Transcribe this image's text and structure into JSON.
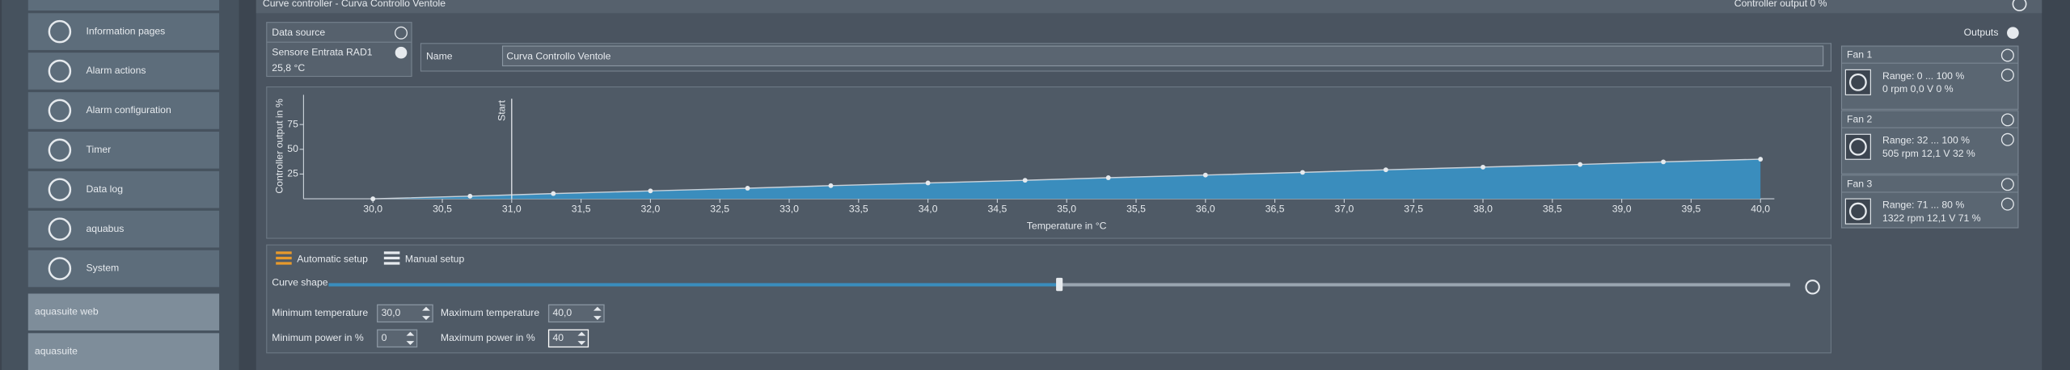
{
  "sidebar": {
    "items": [
      "Information pages",
      "Alarm actions",
      "Alarm configuration",
      "Timer",
      "Data log",
      "aquabus",
      "System"
    ],
    "buttons": [
      "aquasuite web",
      "aquasuite"
    ]
  },
  "header": {
    "title": "Curve controller  -  Curva Controllo Ventole",
    "output": "Controller output   0 %"
  },
  "data_source": {
    "title": "Data source",
    "sensor": "Sensore Entrata RAD1",
    "value": "25,8 °C"
  },
  "name": {
    "label": "Name",
    "value": "Curva Controllo Ventole"
  },
  "chart_data": {
    "type": "area",
    "xlabel": "Temperature in °C",
    "ylabel": "Controller output in %",
    "x": [
      30.0,
      30.7,
      31.3,
      32.0,
      32.7,
      33.3,
      34.0,
      34.7,
      35.3,
      36.0,
      36.7,
      37.3,
      38.0,
      38.7,
      39.3,
      40.0
    ],
    "values": [
      0,
      2.7,
      5.3,
      8,
      10.7,
      13.3,
      16,
      18.7,
      21.3,
      24,
      26.7,
      29.3,
      32,
      34.7,
      37.3,
      40
    ],
    "color": "#c9d1d9",
    "fill": "#3a8dbd",
    "xlim": [
      29.5,
      40.1
    ],
    "ylim": [
      0,
      105
    ],
    "xticks": [
      {
        "value": 30.0,
        "label": "30,0"
      },
      {
        "value": 30.5,
        "label": "30,5"
      },
      {
        "value": 31.0,
        "label": "31,0"
      },
      {
        "value": 31.5,
        "label": "31,5"
      },
      {
        "value": 32.0,
        "label": "32,0"
      },
      {
        "value": 32.5,
        "label": "32,5"
      },
      {
        "value": 33.0,
        "label": "33,0"
      },
      {
        "value": 33.5,
        "label": "33,5"
      },
      {
        "value": 34.0,
        "label": "34,0"
      },
      {
        "value": 34.5,
        "label": "34,5"
      },
      {
        "value": 35.0,
        "label": "35,0"
      },
      {
        "value": 35.5,
        "label": "35,5"
      },
      {
        "value": 36.0,
        "label": "36,0"
      },
      {
        "value": 36.5,
        "label": "36,5"
      },
      {
        "value": 37.0,
        "label": "37,0"
      },
      {
        "value": 37.5,
        "label": "37,5"
      },
      {
        "value": 38.0,
        "label": "38,0"
      },
      {
        "value": 38.5,
        "label": "38,5"
      },
      {
        "value": 39.0,
        "label": "39,0"
      },
      {
        "value": 39.5,
        "label": "39,5"
      },
      {
        "value": 40.0,
        "label": "40,0"
      }
    ],
    "yticks": [
      25,
      50,
      75
    ],
    "annotations": [
      {
        "x": 31.0,
        "text": "Start"
      }
    ]
  },
  "setup": {
    "automatic": "Automatic setup",
    "manual": "Manual setup",
    "curve_shape": "Curve shape",
    "fields": [
      {
        "label": "Minimum temperature",
        "value": "30,0"
      },
      {
        "label": "Maximum temperature",
        "value": "40,0"
      },
      {
        "label": "Minimum power in %",
        "value": "0"
      },
      {
        "label": "Maximum power in %",
        "value": "40"
      }
    ]
  },
  "outputs": {
    "title": "Outputs",
    "fans": [
      {
        "name": "Fan 1",
        "range": "Range: 0 ... 100  %",
        "status": "0 rpm  0,0 V  0 %"
      },
      {
        "name": "Fan 2",
        "range": "Range: 32 ... 100  %",
        "status": "505 rpm  12,1 V  32 %"
      },
      {
        "name": "Fan 3",
        "range": "Range: 71 ... 80  %",
        "status": "1322 rpm  12,1 V  71 %"
      }
    ]
  }
}
